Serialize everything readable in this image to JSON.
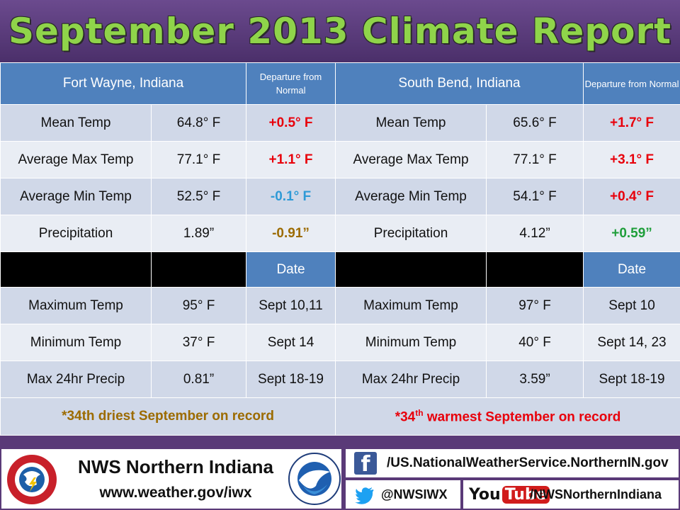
{
  "title": "September 2013 Climate Report",
  "fort_wayne": {
    "city": "Fort Wayne, Indiana",
    "departure_header": "Departure from Normal",
    "rows": [
      {
        "label": "Mean Temp",
        "value": "64.8° F",
        "departure": "+0.5° F"
      },
      {
        "label": "Average Max Temp",
        "value": "77.1° F",
        "departure": "+1.1° F"
      },
      {
        "label": "Average Min Temp",
        "value": "52.5° F",
        "departure": "-0.1° F"
      },
      {
        "label": "Precipitation",
        "value": "1.89”",
        "departure": "-0.91”"
      }
    ],
    "date_header": "Date",
    "extremes": [
      {
        "label": "Maximum Temp",
        "value": "95° F",
        "date": "Sept 10,11"
      },
      {
        "label": "Minimum Temp",
        "value": "37° F",
        "date": "Sept 14"
      },
      {
        "label": "Max 24hr Precip",
        "value": "0.81”",
        "date": "Sept 18-19"
      }
    ],
    "note": "*34th driest September on record"
  },
  "south_bend": {
    "city": "South Bend, Indiana",
    "departure_header": "Departure from Normal",
    "rows": [
      {
        "label": "Mean Temp",
        "value": "65.6° F",
        "departure": "+1.7° F"
      },
      {
        "label": "Average Max Temp",
        "value": "77.1° F",
        "departure": "+3.1° F"
      },
      {
        "label": "Average Min Temp",
        "value": "54.1° F",
        "departure": "+0.4° F"
      },
      {
        "label": "Precipitation",
        "value": "4.12”",
        "departure": "+0.59”"
      }
    ],
    "date_header": "Date",
    "extremes": [
      {
        "label": "Maximum Temp",
        "value": "97° F",
        "date": "Sept 10"
      },
      {
        "label": "Minimum Temp",
        "value": "40° F",
        "date": "Sept 14, 23"
      },
      {
        "label": "Max 24hr Precip",
        "value": "3.59”",
        "date": "Sept 18-19"
      }
    ],
    "note_prefix": "*34",
    "note_sup": "th",
    "note_suffix": " warmest September on record"
  },
  "footer": {
    "org_name": "NWS Northern Indiana",
    "org_url": "www.weather.gov/iwx",
    "facebook": "/US.NationalWeatherService.NorthernIN.gov",
    "twitter": "@NWSIWX",
    "youtube_logo_you": "You",
    "youtube_logo_tube": "Tube",
    "youtube": "/NWSNorthernIndiana",
    "facebook_letter": "f"
  },
  "colors": {
    "title_green": "#8fd44a",
    "header_blue": "#4f81bd",
    "positive_red": "#e8000b",
    "negative_blue": "#2e9ad6",
    "dry_brown": "#9c6b00",
    "wet_green": "#1f9e3a",
    "background_purple": "#5a3a78"
  }
}
